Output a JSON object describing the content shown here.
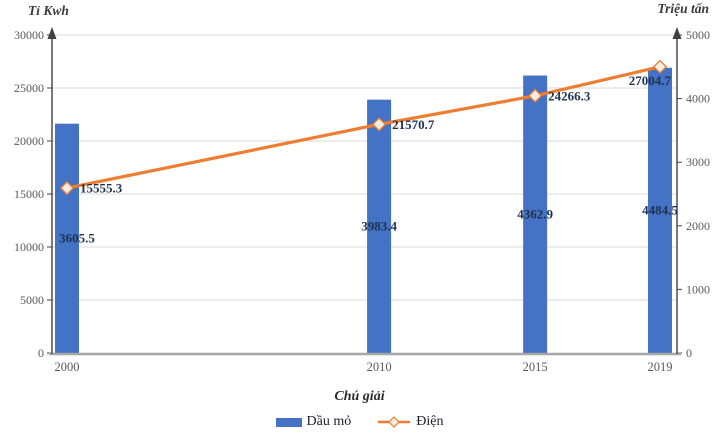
{
  "figure": {
    "legend_title": "Chú giải",
    "legend": [
      {
        "label": "Dầu mỏ",
        "swatch": "bar-swatch-icon"
      },
      {
        "label": "Điện",
        "swatch": "line-diamond-swatch-icon"
      }
    ]
  },
  "chart_data": {
    "type": "bar+line combo",
    "categories": [
      "2000",
      "2010",
      "2015",
      "2019"
    ],
    "x": [
      2000,
      2010,
      2015,
      2019
    ],
    "series": [
      {
        "name": "Dầu mỏ",
        "type": "bar",
        "axis": "right",
        "unit": "Triệu tấn",
        "values": [
          3605.5,
          3983.4,
          4362.9,
          4484.5
        ],
        "color": "#4472C4"
      },
      {
        "name": "Điện",
        "type": "line",
        "axis": "left",
        "unit": "Tỉ Kwh",
        "values": [
          15555.3,
          21570.7,
          24266.3,
          27004.7
        ],
        "color": "#ED7D31"
      }
    ],
    "left_axis": {
      "title": "Tỉ Kwh",
      "min": 0,
      "max": 30000,
      "step": 5000
    },
    "right_axis": {
      "title": "Triệu tấn",
      "min": 0,
      "max": 5000,
      "step": 1000
    },
    "x_axis": {
      "type": "linear",
      "min": 2000,
      "max": 2019
    },
    "legend_title": "Chú giải",
    "grid": true,
    "legend_position": "bottom"
  },
  "colors": {
    "bar": "#4472C4",
    "line": "#ED7D31",
    "marker_fill": "#F3EDE2",
    "grid": "#D9D9D9",
    "axis_dark": "#404040",
    "axis_gray": "#A6A6A6",
    "tick_text": "#595959",
    "data_label": "#1F3250"
  }
}
